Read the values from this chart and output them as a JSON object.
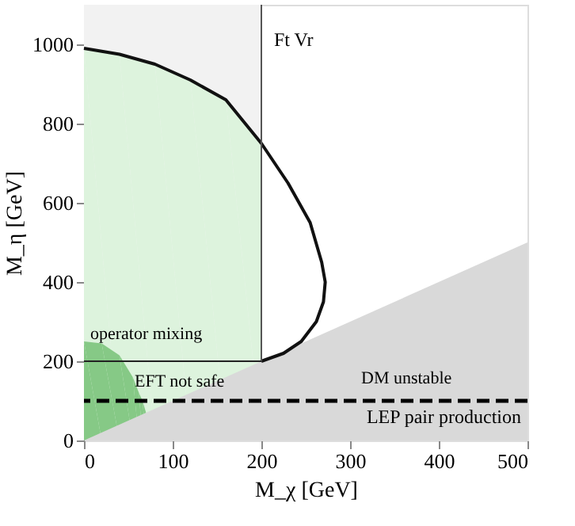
{
  "chart_data": {
    "type": "line",
    "xlabel": "M_χ [GeV]",
    "ylabel": "M_η [GeV]",
    "xlim": [
      0,
      500
    ],
    "xticks": [
      0,
      100,
      200,
      300,
      400,
      500
    ],
    "ylim": [
      0,
      1100
    ],
    "yticks": [
      0,
      200,
      400,
      600,
      800,
      1000
    ],
    "grid": false,
    "bands": [
      {
        "axis": "x",
        "from": 0,
        "to": 200,
        "color": "#f2f2f2"
      }
    ],
    "series": [
      {
        "type": "area",
        "color": "#ddf3dd",
        "x": [
          0,
          40,
          80,
          120,
          160,
          200
        ],
        "values": [
          990,
          975,
          950,
          910,
          860,
          750
        ]
      },
      {
        "type": "area",
        "color": "#86c986",
        "x": [
          0,
          20,
          40,
          55,
          62,
          66,
          70
        ],
        "values": [
          250,
          245,
          215,
          160,
          120,
          100,
          70
        ]
      },
      {
        "type": "area",
        "color": "#d9d9d9",
        "x": [
          0,
          500
        ],
        "values": [
          0,
          500
        ]
      },
      {
        "color": "#111111",
        "x": [
          0,
          40,
          80,
          120,
          160,
          200,
          230,
          255,
          268,
          272,
          270,
          262,
          245,
          225,
          200
        ],
        "values": [
          990,
          975,
          950,
          910,
          860,
          750,
          650,
          550,
          450,
          400,
          350,
          300,
          250,
          220,
          200
        ]
      },
      {
        "color": "#555555",
        "x": [
          200,
          200
        ],
        "values": [
          200,
          1100
        ]
      },
      {
        "color": "#222222",
        "x": [
          0,
          200
        ],
        "values": [
          200,
          200
        ]
      }
    ],
    "ref_lines": [
      {
        "axis": "y",
        "value": 100,
        "label": "LEP pair production",
        "color": "#000000",
        "line_style": "dashed"
      }
    ],
    "annotations": [
      "Ft Vr",
      "operator mixing",
      "EFT not safe",
      "DM unstable"
    ]
  }
}
